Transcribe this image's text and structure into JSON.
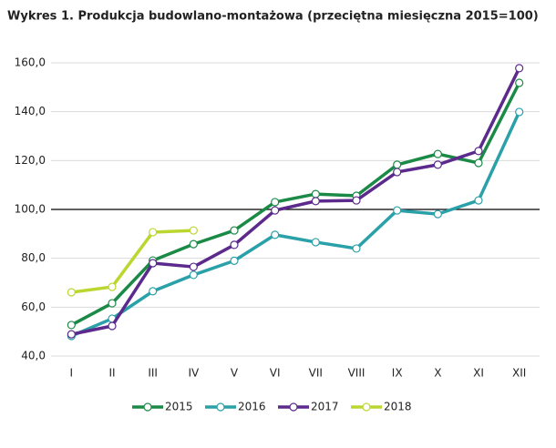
{
  "chart_data": {
    "type": "line",
    "title": "Wykres 1. Produkcja budowlano-montażowa (przeciętna miesięczna 2015=100)",
    "categories": [
      "I",
      "II",
      "III",
      "IV",
      "V",
      "VI",
      "VII",
      "VIII",
      "IX",
      "X",
      "XI",
      "XII"
    ],
    "series": [
      {
        "name": "2015",
        "color": "#1b8a47",
        "values": [
          52.7,
          61.6,
          79.1,
          85.8,
          91.4,
          103,
          106.3,
          105.6,
          118.3,
          122.7,
          119,
          151.8
        ]
      },
      {
        "name": "2016",
        "color": "#2aa0a8",
        "values": [
          48.2,
          55.3,
          66.5,
          73.2,
          79,
          89.6,
          86.6,
          84,
          99.6,
          98.1,
          103.7,
          139.9
        ]
      },
      {
        "name": "2017",
        "color": "#5b2a8c",
        "values": [
          48.9,
          52.3,
          78,
          76.5,
          85.5,
          99.6,
          103.4,
          103.7,
          115.3,
          118.3,
          123.9,
          157.8
        ]
      },
      {
        "name": "2018",
        "color": "#bcd630",
        "values": [
          66.1,
          68.3,
          90.7,
          91.4,
          null,
          null,
          null,
          null,
          null,
          null,
          null,
          null
        ]
      }
    ],
    "ylim": [
      40,
      160
    ],
    "yticks": [
      {
        "value": 40,
        "label": "40,0"
      },
      {
        "value": 60,
        "label": "60,0"
      },
      {
        "value": 80,
        "label": "80,0"
      },
      {
        "value": 100,
        "label": "100,0"
      },
      {
        "value": 120,
        "label": "120,0"
      },
      {
        "value": 140,
        "label": "140,0"
      },
      {
        "value": 160,
        "label": "160,0"
      }
    ],
    "reference_line": 100,
    "grid": true,
    "legend": "bottom"
  }
}
